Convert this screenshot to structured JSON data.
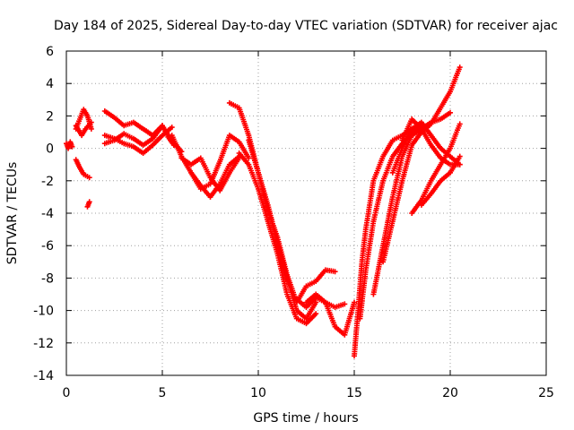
{
  "chart_data": {
    "type": "scatter",
    "title": "Day 184 of 2025, Sidereal Day-to-day VTEC variation (SDTVAR) for receiver ajac",
    "xlabel": "GPS time / hours",
    "ylabel": "SDTVAR / TECUs",
    "xlim": [
      0,
      25
    ],
    "ylim": [
      -14,
      6
    ],
    "xticks": [
      "0",
      "5",
      "10",
      "15",
      "20",
      "25"
    ],
    "yticks": [
      "-14",
      "-12",
      "-10",
      "-8",
      "-6",
      "-4",
      "-2",
      "0",
      "2",
      "4",
      "6"
    ],
    "grid": true,
    "marker": "+",
    "marker_color": "#ff0000",
    "series": [
      {
        "x": [
          0.0,
          0.1,
          0.2,
          0.3
        ],
        "y": [
          0.3,
          0.0,
          0.4,
          0.1
        ]
      },
      {
        "x": [
          0.5,
          0.7,
          0.9,
          1.1,
          1.3
        ],
        "y": [
          1.2,
          1.8,
          2.4,
          2.0,
          1.2
        ]
      },
      {
        "x": [
          0.5,
          0.8,
          1.0,
          1.3
        ],
        "y": [
          1.4,
          0.8,
          1.2,
          1.6
        ]
      },
      {
        "x": [
          0.5,
          0.7,
          0.9,
          1.2
        ],
        "y": [
          -0.7,
          -1.2,
          -1.6,
          -1.8
        ]
      },
      {
        "x": [
          1.1,
          1.2
        ],
        "y": [
          -3.6,
          -3.3
        ]
      },
      {
        "x": [
          2.0,
          2.5,
          3.0,
          3.5,
          4.0,
          4.5,
          5.0,
          5.3,
          5.6
        ],
        "y": [
          2.3,
          1.9,
          1.4,
          1.6,
          1.2,
          0.8,
          1.4,
          0.7,
          0.2
        ]
      },
      {
        "x": [
          2.0,
          2.5,
          3.0,
          3.5,
          4.0,
          4.5,
          5.0,
          5.5
        ],
        "y": [
          0.8,
          0.6,
          0.3,
          0.1,
          -0.3,
          0.2,
          0.8,
          1.3
        ]
      },
      {
        "x": [
          2.0,
          2.5,
          3.0,
          3.5,
          4.0,
          4.5,
          5.0,
          5.5,
          6.0
        ],
        "y": [
          0.3,
          0.5,
          0.9,
          0.6,
          0.2,
          0.6,
          1.4,
          0.5,
          -0.2
        ]
      },
      {
        "x": [
          5.5,
          6.0,
          6.5,
          7.0,
          7.5,
          8.0,
          8.5,
          9.0,
          9.5
        ],
        "y": [
          0.8,
          -0.5,
          -1.5,
          -2.5,
          -2.2,
          -0.8,
          0.8,
          0.4,
          -0.6
        ]
      },
      {
        "x": [
          6.0,
          6.5,
          7.0,
          7.5,
          8.0,
          8.5,
          9.0
        ],
        "y": [
          -0.6,
          -1.0,
          -0.6,
          -1.8,
          -2.6,
          -1.5,
          -0.6
        ]
      },
      {
        "x": [
          6.5,
          7.0,
          7.5,
          8.0,
          8.5,
          9.0
        ],
        "y": [
          -1.5,
          -2.3,
          -3.0,
          -2.2,
          -1.0,
          -0.5
        ]
      },
      {
        "x": [
          8.5,
          9.0,
          9.5,
          10.0,
          10.5,
          11.0,
          11.5,
          12.0,
          12.5,
          13.0
        ],
        "y": [
          2.8,
          2.5,
          0.8,
          -1.5,
          -3.5,
          -5.8,
          -8.0,
          -10.0,
          -10.5,
          -9.5
        ]
      },
      {
        "x": [
          9.0,
          9.5,
          10.0,
          10.5,
          11.0,
          11.5,
          12.0,
          12.5,
          13.0
        ],
        "y": [
          -0.3,
          -1.0,
          -2.5,
          -4.5,
          -6.5,
          -9.0,
          -10.5,
          -10.8,
          -10.2
        ]
      },
      {
        "x": [
          9.5,
          10.0,
          10.5,
          11.0,
          11.5,
          12.0,
          12.5,
          13.0,
          13.5,
          14.0
        ],
        "y": [
          0.5,
          -1.5,
          -3.8,
          -5.5,
          -7.8,
          -9.5,
          -8.5,
          -8.2,
          -7.5,
          -7.6
        ]
      },
      {
        "x": [
          12.5,
          13.0,
          13.5,
          14.0,
          14.5,
          15.0
        ],
        "y": [
          -9.5,
          -9.0,
          -9.5,
          -11.0,
          -11.5,
          -9.5
        ]
      },
      {
        "x": [
          12.0,
          12.5,
          13.0,
          13.5,
          14.0,
          14.5
        ],
        "y": [
          -9.3,
          -9.8,
          -9.2,
          -9.5,
          -9.8,
          -9.6
        ]
      },
      {
        "x": [
          15.0,
          15.2,
          15.4,
          15.6,
          15.8,
          16.0,
          16.5,
          17.0,
          17.5,
          18.0
        ],
        "y": [
          -12.8,
          -10.0,
          -7.0,
          -5.0,
          -3.5,
          -2.0,
          -0.5,
          0.5,
          0.8,
          1.2
        ]
      },
      {
        "x": [
          15.3,
          15.6,
          16.0,
          16.5,
          17.0,
          17.5,
          18.0,
          18.5
        ],
        "y": [
          -10.5,
          -7.5,
          -4.5,
          -2.0,
          -0.5,
          0.3,
          1.0,
          1.5
        ]
      },
      {
        "x": [
          16.0,
          16.5,
          17.0,
          17.5,
          18.0,
          18.5,
          19.0,
          19.5,
          20.0
        ],
        "y": [
          -9.0,
          -6.0,
          -3.0,
          -0.5,
          0.8,
          1.2,
          1.6,
          1.8,
          2.2
        ]
      },
      {
        "x": [
          16.5,
          17.0,
          17.5,
          18.0,
          18.5,
          19.0,
          19.5,
          20.0,
          20.5
        ],
        "y": [
          -7.0,
          -4.5,
          -2.0,
          0.2,
          1.0,
          1.5,
          2.5,
          3.5,
          5.0
        ]
      },
      {
        "x": [
          17.0,
          17.5,
          18.0,
          18.5,
          19.0,
          19.5,
          20.0,
          20.5
        ],
        "y": [
          -1.5,
          0.0,
          1.2,
          1.6,
          0.8,
          0.0,
          -0.5,
          -1.0
        ]
      },
      {
        "x": [
          17.5,
          18.0,
          18.5,
          19.0,
          19.5,
          20.0,
          20.5
        ],
        "y": [
          0.5,
          1.8,
          1.2,
          0.2,
          -0.6,
          -1.0,
          -1.0
        ]
      },
      {
        "x": [
          18.0,
          18.5,
          19.0,
          19.5,
          20.0,
          20.5
        ],
        "y": [
          -4.0,
          -3.2,
          -2.0,
          -1.0,
          0.0,
          1.5
        ]
      },
      {
        "x": [
          18.5,
          19.0,
          19.5,
          20.0,
          20.5
        ],
        "y": [
          -3.5,
          -2.8,
          -2.0,
          -1.5,
          -0.5
        ]
      }
    ]
  }
}
